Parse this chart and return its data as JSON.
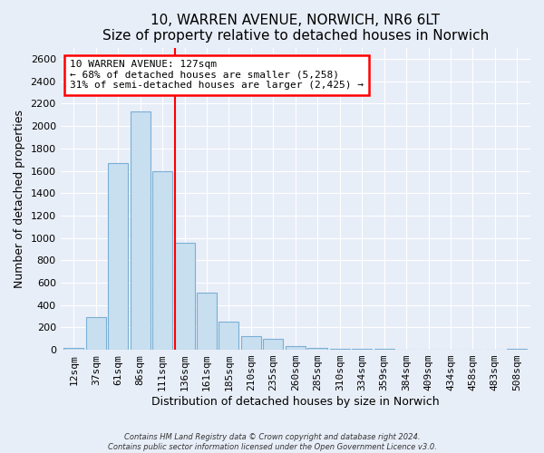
{
  "title": "10, WARREN AVENUE, NORWICH, NR6 6LT",
  "subtitle": "Size of property relative to detached houses in Norwich",
  "xlabel": "Distribution of detached houses by size in Norwich",
  "ylabel": "Number of detached properties",
  "bar_labels": [
    "12sqm",
    "37sqm",
    "61sqm",
    "86sqm",
    "111sqm",
    "136sqm",
    "161sqm",
    "185sqm",
    "210sqm",
    "235sqm",
    "260sqm",
    "285sqm",
    "310sqm",
    "334sqm",
    "359sqm",
    "384sqm",
    "409sqm",
    "434sqm",
    "458sqm",
    "483sqm",
    "508sqm"
  ],
  "bar_values": [
    15,
    290,
    1670,
    2130,
    1600,
    960,
    510,
    250,
    125,
    95,
    30,
    15,
    10,
    5,
    5,
    3,
    3,
    2,
    2,
    0,
    10
  ],
  "bar_color": "#c8dff0",
  "bar_edge_color": "#7aafd4",
  "vline_color": "red",
  "vline_index": 5,
  "bar_width": 0.9,
  "annotation_text": "10 WARREN AVENUE: 127sqm\n← 68% of detached houses are smaller (5,258)\n31% of semi-detached houses are larger (2,425) →",
  "annotation_box_facecolor": "white",
  "annotation_box_edgecolor": "red",
  "ylim": [
    0,
    2700
  ],
  "yticks": [
    0,
    200,
    400,
    600,
    800,
    1000,
    1200,
    1400,
    1600,
    1800,
    2000,
    2200,
    2400,
    2600
  ],
  "footer1": "Contains HM Land Registry data © Crown copyright and database right 2024.",
  "footer2": "Contains public sector information licensed under the Open Government Licence v3.0.",
  "bg_color": "#e8eef8",
  "plot_bg_color": "#e8eef8",
  "grid_color": "white",
  "title_fontsize": 11,
  "subtitle_fontsize": 10,
  "ylabel_fontsize": 9,
  "xlabel_fontsize": 9,
  "tick_fontsize": 8,
  "annot_fontsize": 8
}
